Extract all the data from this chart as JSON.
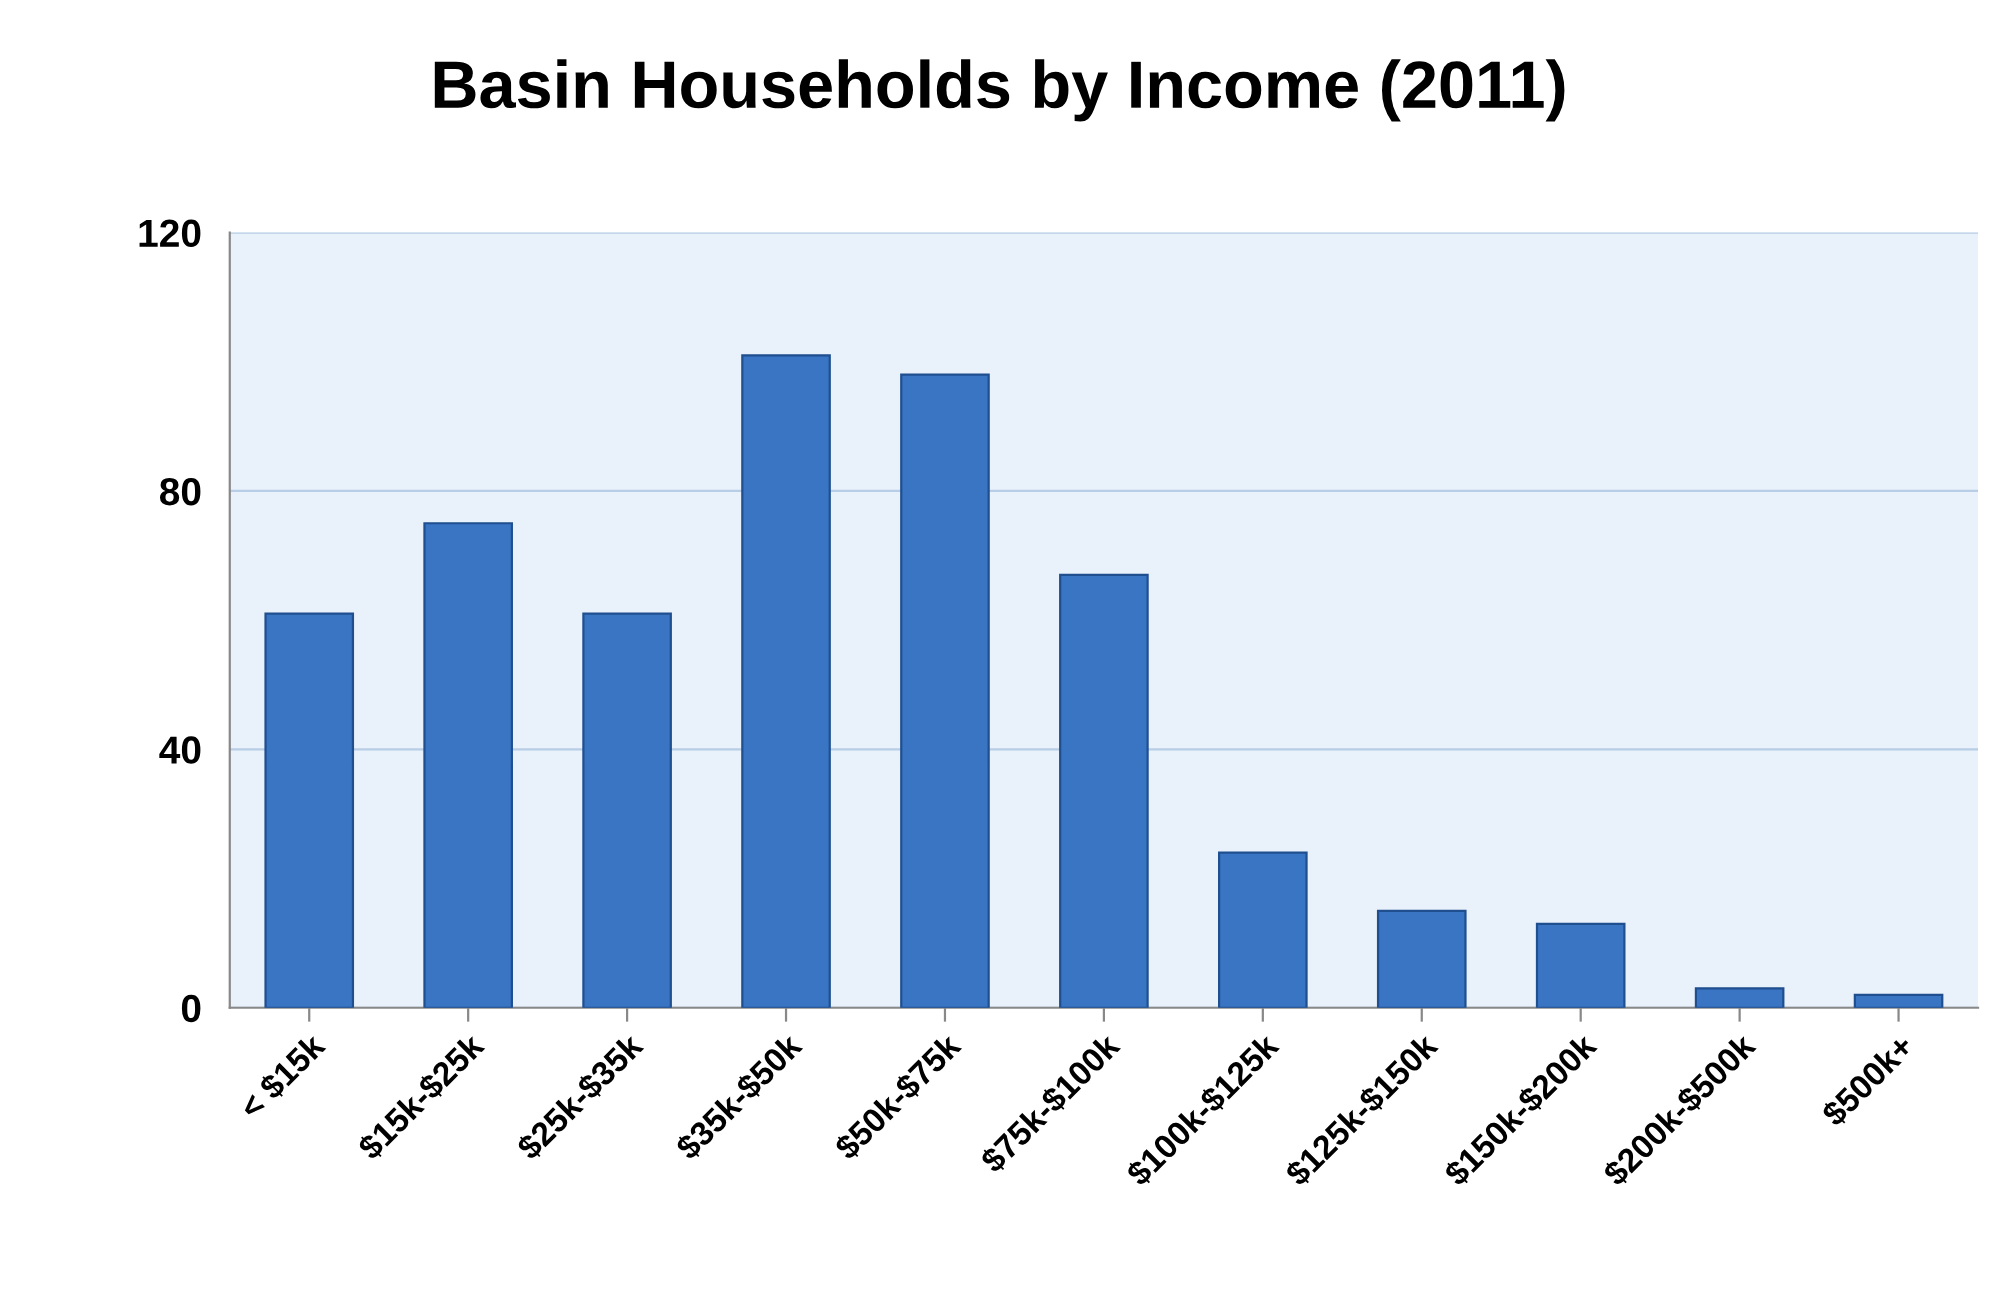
{
  "chart_data": {
    "type": "bar",
    "title": "Basin Households by Income (2011)",
    "categories": [
      "< $15k",
      "$15k-$25k",
      "$25k-$35k",
      "$35k-$50k",
      "$50k-$75k",
      "$75k-$100k",
      "$100k-$125k",
      "$125k-$150k",
      "$150k-$200k",
      "$200k-$500k",
      "$500k+"
    ],
    "values": [
      61,
      75,
      61,
      101,
      98,
      67,
      24,
      15,
      13,
      3,
      2
    ],
    "color": "#3a75c4",
    "ylim": [
      0,
      120
    ],
    "yticks": [
      0,
      40,
      80,
      120
    ],
    "grid": "y",
    "legend": false
  }
}
